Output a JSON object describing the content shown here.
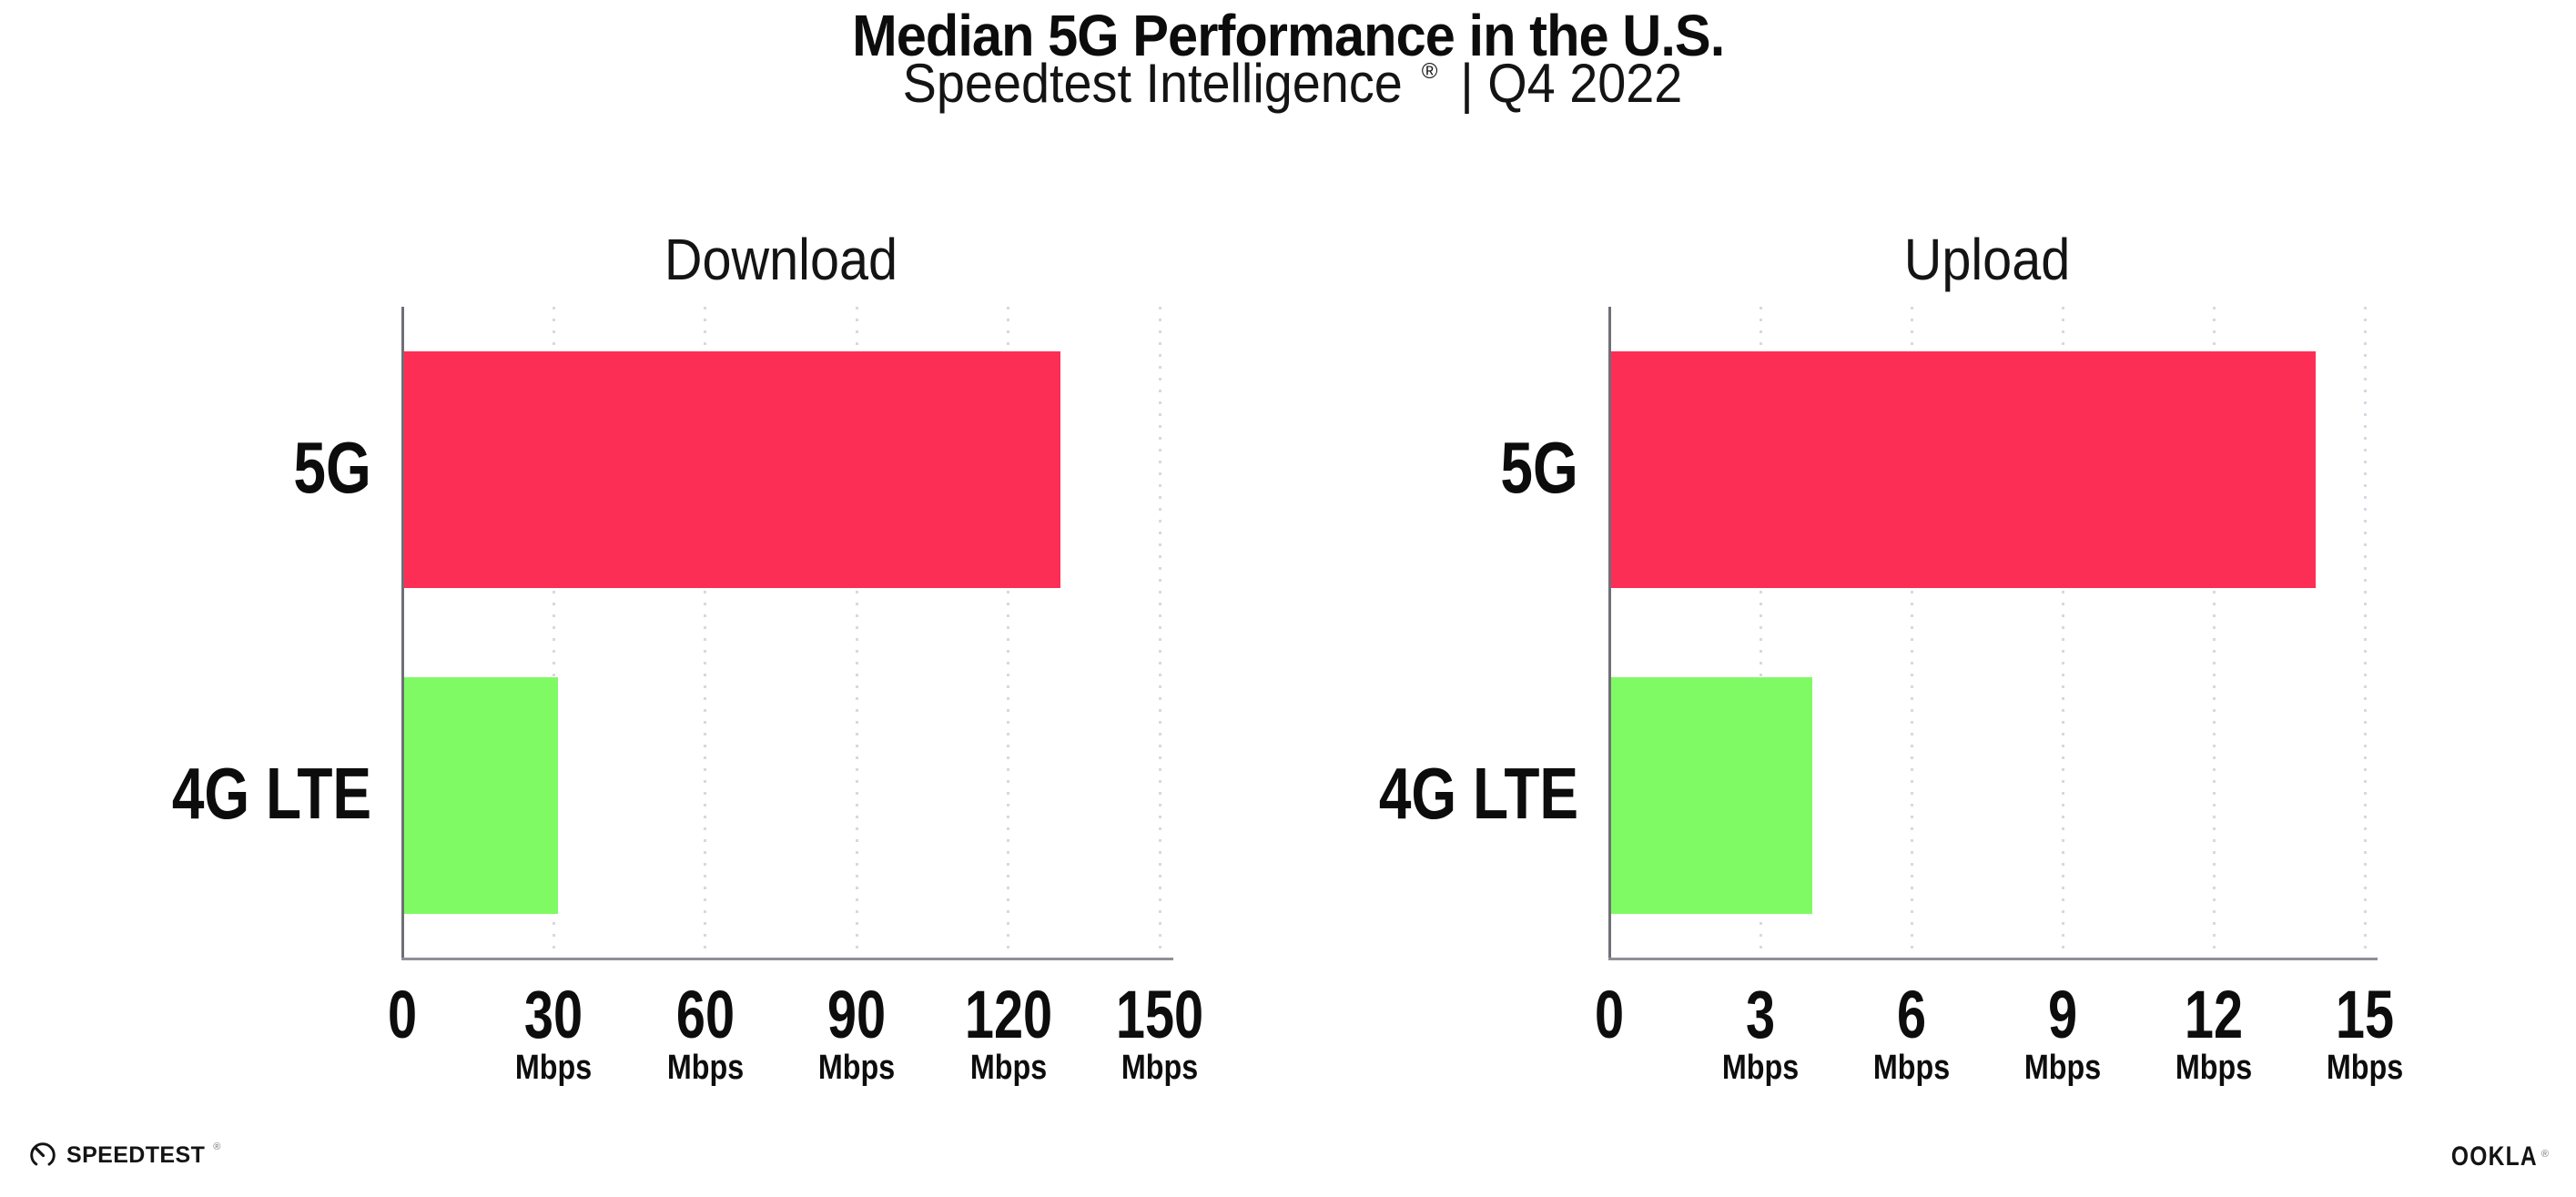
{
  "header": {
    "title": "Median 5G Performance in the U.S.",
    "subtitle_product": "Speedtest Intelligence",
    "subtitle_registered": "®",
    "subtitle_rest": " | Q4 2022"
  },
  "chart_data": [
    {
      "type": "bar",
      "orientation": "horizontal",
      "title": "Download",
      "categories": [
        "5G",
        "4G LTE"
      ],
      "values": [
        130,
        30.5
      ],
      "unit": "Mbps",
      "xticks": [
        0,
        30,
        60,
        90,
        120,
        150
      ],
      "xlim": [
        0,
        150
      ],
      "grid": "vertical-dotted",
      "legend": "none",
      "bar_colors": [
        "#FD2E56",
        "#80FA64"
      ]
    },
    {
      "type": "bar",
      "orientation": "horizontal",
      "title": "Upload",
      "categories": [
        "5G",
        "4G LTE"
      ],
      "values": [
        14,
        4
      ],
      "unit": "Mbps",
      "xticks": [
        0,
        3,
        6,
        9,
        12,
        15
      ],
      "xlim": [
        0,
        15
      ],
      "grid": "vertical-dotted",
      "legend": "none",
      "bar_colors": [
        "#FD2E56",
        "#80FA64"
      ]
    }
  ],
  "colors": {
    "bar_5g": "#FD2E56",
    "bar_4g_lte": "#80FA64",
    "gridline": "#D8D8E2",
    "axis_left_spine": "#6F6F77",
    "axis_bottom_spine": "#8F8F97",
    "text": "#111111"
  },
  "footer": {
    "speedtest_label": "SPEEDTEST",
    "speedtest_registered": "®",
    "speedtest_icon": "speedtest-gauge-icon",
    "ookla_label": "OOKLA",
    "ookla_registered": "®"
  }
}
